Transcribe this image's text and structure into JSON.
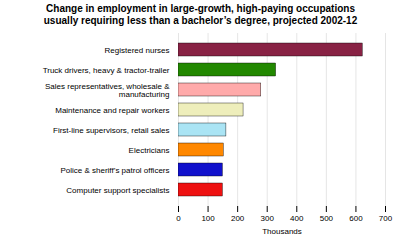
{
  "chart_data": {
    "type": "bar",
    "orientation": "horizontal",
    "title": "Change in employment in large-growth, high-paying occupations",
    "subtitle": "usually requiring less than a bachelor’s degree, projected 2002-12",
    "categories": [
      "Computer support specialists",
      "Police & sheriff’s patrol officers",
      "Electricians",
      "First-line supervisors, retail sales",
      "Maintenance and repair workers",
      "Sales representatives, wholesale &\nmanufacturing",
      "Truck drivers, heavy & tractor-trailer",
      "Registered nurses"
    ],
    "values": [
      150,
      150,
      153,
      162,
      220,
      280,
      330,
      623
    ],
    "colors": [
      "#ee1111",
      "#1111cc",
      "#ff8800",
      "#aae4f4",
      "#eeeebb",
      "#ffaaaa",
      "#228800",
      "#882244"
    ],
    "xlim": [
      0,
      700
    ],
    "xticks": [
      0,
      100,
      200,
      300,
      400,
      500,
      600,
      700
    ],
    "xlabel": "Thousands",
    "grid": true
  }
}
